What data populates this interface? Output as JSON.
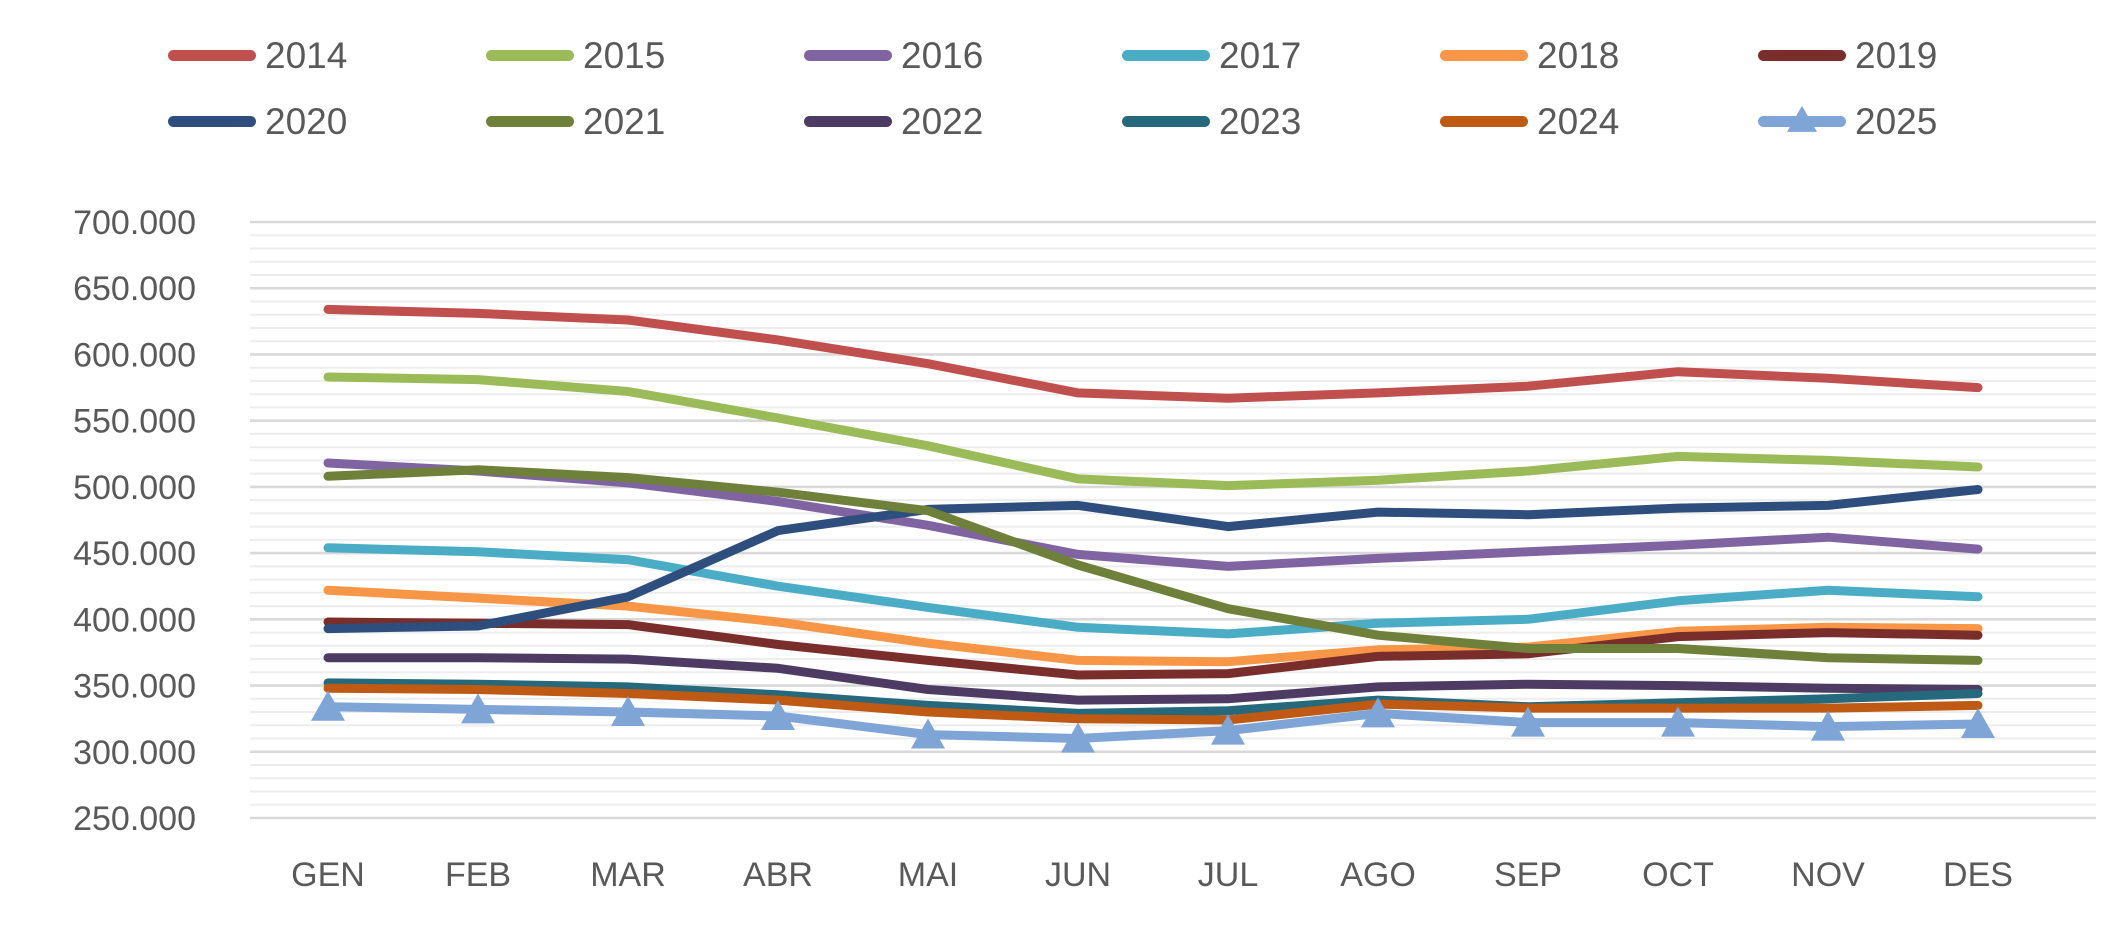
{
  "text_color": "#595959",
  "background_color": "#ffffff",
  "gridline_minor_color": "#ededed",
  "gridline_major_color": "#d9d9d9",
  "legend": {
    "items": [
      {
        "label": "2014",
        "color": "#C0504D",
        "marker": "none"
      },
      {
        "label": "2015",
        "color": "#9BBB59",
        "marker": "none"
      },
      {
        "label": "2016",
        "color": "#8064A2",
        "marker": "none"
      },
      {
        "label": "2017",
        "color": "#4BACC6",
        "marker": "none"
      },
      {
        "label": "2018",
        "color": "#F79646",
        "marker": "none"
      },
      {
        "label": "2019",
        "color": "#7A2E2C",
        "marker": "none"
      },
      {
        "label": "2020",
        "color": "#2E4F7D",
        "marker": "none"
      },
      {
        "label": "2021",
        "color": "#6E803A",
        "marker": "none"
      },
      {
        "label": "2022",
        "color": "#4D3B63",
        "marker": "none"
      },
      {
        "label": "2023",
        "color": "#26697C",
        "marker": "none"
      },
      {
        "label": "2024",
        "color": "#BE5A13",
        "marker": "none"
      },
      {
        "label": "2025",
        "color": "#7FA4D6",
        "marker": "triangle"
      }
    ]
  },
  "y_axis": {
    "tick_labels": [
      "700.000",
      "650.000",
      "600.000",
      "550.000",
      "500.000",
      "450.000",
      "400.000",
      "350.000",
      "300.000",
      "250.000"
    ],
    "tick_values": [
      700000,
      650000,
      600000,
      550000,
      500000,
      450000,
      400000,
      350000,
      300000,
      250000
    ]
  },
  "x_axis": {
    "tick_labels": [
      "GEN",
      "FEB",
      "MAR",
      "ABR",
      "MAI",
      "JUN",
      "JUL",
      "AGO",
      "SEP",
      "OCT",
      "NOV",
      "DES"
    ]
  },
  "chart_data": {
    "type": "line",
    "title": "",
    "xlabel": "",
    "ylabel": "",
    "categories": [
      "GEN",
      "FEB",
      "MAR",
      "ABR",
      "MAI",
      "JUN",
      "JUL",
      "AGO",
      "SEP",
      "OCT",
      "NOV",
      "DES"
    ],
    "ylim": [
      250000,
      700000
    ],
    "y_major_step": 50000,
    "y_minor_step": 10000,
    "grid": "horizontal-minor-and-major",
    "legend_position": "top",
    "series": [
      {
        "name": "2014",
        "color": "#C0504D",
        "marker": "none",
        "values": [
          634000,
          631000,
          626000,
          611000,
          593000,
          571000,
          567000,
          571000,
          576000,
          587000,
          582000,
          575000
        ]
      },
      {
        "name": "2015",
        "color": "#9BBB59",
        "marker": "none",
        "values": [
          583000,
          581000,
          572000,
          552000,
          531000,
          506000,
          501000,
          505000,
          512000,
          523000,
          520000,
          515000
        ]
      },
      {
        "name": "2016",
        "color": "#8064A2",
        "marker": "none",
        "values": [
          518000,
          512000,
          503000,
          489000,
          471000,
          449000,
          440000,
          446000,
          451000,
          456000,
          462000,
          453000
        ]
      },
      {
        "name": "2017",
        "color": "#4BACC6",
        "marker": "none",
        "values": [
          454000,
          451000,
          445000,
          425000,
          409000,
          394000,
          389000,
          397000,
          400000,
          414000,
          422000,
          417000
        ]
      },
      {
        "name": "2018",
        "color": "#F79646",
        "marker": "none",
        "values": [
          422000,
          416000,
          410000,
          398000,
          382000,
          369000,
          368000,
          377000,
          379000,
          391000,
          394000,
          393000
        ]
      },
      {
        "name": "2019",
        "color": "#7A2E2C",
        "marker": "none",
        "values": [
          398000,
          397000,
          396000,
          381000,
          369000,
          358000,
          359000,
          372000,
          374000,
          387000,
          390000,
          388000
        ]
      },
      {
        "name": "2020",
        "color": "#2E4F7D",
        "marker": "none",
        "values": [
          393000,
          395000,
          417000,
          467000,
          483000,
          486000,
          470000,
          481000,
          479000,
          484000,
          486000,
          498000
        ]
      },
      {
        "name": "2021",
        "color": "#6E803A",
        "marker": "none",
        "values": [
          508000,
          513000,
          507000,
          496000,
          482000,
          441000,
          408000,
          388000,
          378000,
          378000,
          371000,
          369000
        ]
      },
      {
        "name": "2022",
        "color": "#4D3B63",
        "marker": "none",
        "values": [
          371000,
          371000,
          370000,
          363000,
          347000,
          339000,
          340000,
          349000,
          351000,
          350000,
          348000,
          347000
        ]
      },
      {
        "name": "2023",
        "color": "#26697C",
        "marker": "none",
        "values": [
          352000,
          351000,
          349000,
          343000,
          335000,
          329000,
          331000,
          339000,
          334000,
          337000,
          340000,
          344000
        ]
      },
      {
        "name": "2024",
        "color": "#BE5A13",
        "marker": "none",
        "values": [
          348000,
          347000,
          344000,
          339000,
          330000,
          325000,
          324000,
          336000,
          333000,
          333000,
          333000,
          335000
        ]
      },
      {
        "name": "2025",
        "color": "#7FA4D6",
        "marker": "triangle",
        "values": [
          334000,
          332000,
          330000,
          327000,
          313000,
          310000,
          316000,
          329000,
          322000,
          322000,
          319000,
          321000
        ]
      }
    ]
  }
}
